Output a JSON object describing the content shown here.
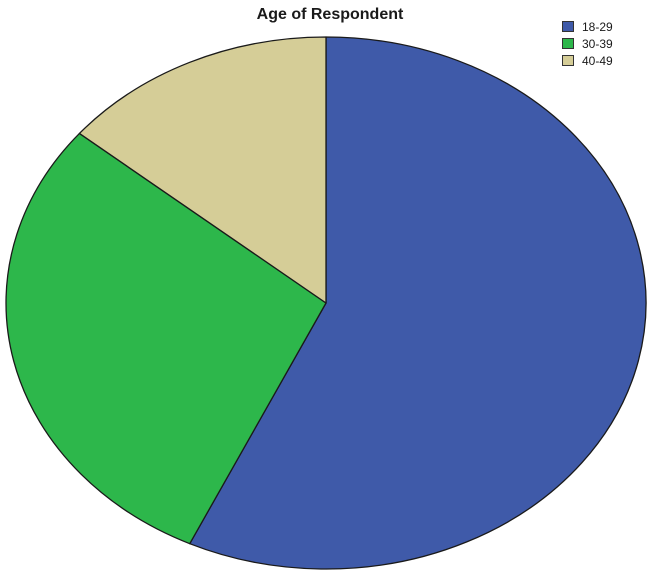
{
  "chart_data": {
    "type": "pie",
    "title": "Age of Respondent",
    "categories": [
      "18-29",
      "30-39",
      "40-49"
    ],
    "values": [
      57,
      29,
      14
    ],
    "colors": [
      "#3f5aa9",
      "#2db74b",
      "#d5cd97"
    ],
    "start_angle_deg": 0,
    "direction": "clockwise",
    "legend": {
      "placement": "top-right",
      "entries": [
        "18-29",
        "30-39",
        "40-49"
      ]
    }
  }
}
